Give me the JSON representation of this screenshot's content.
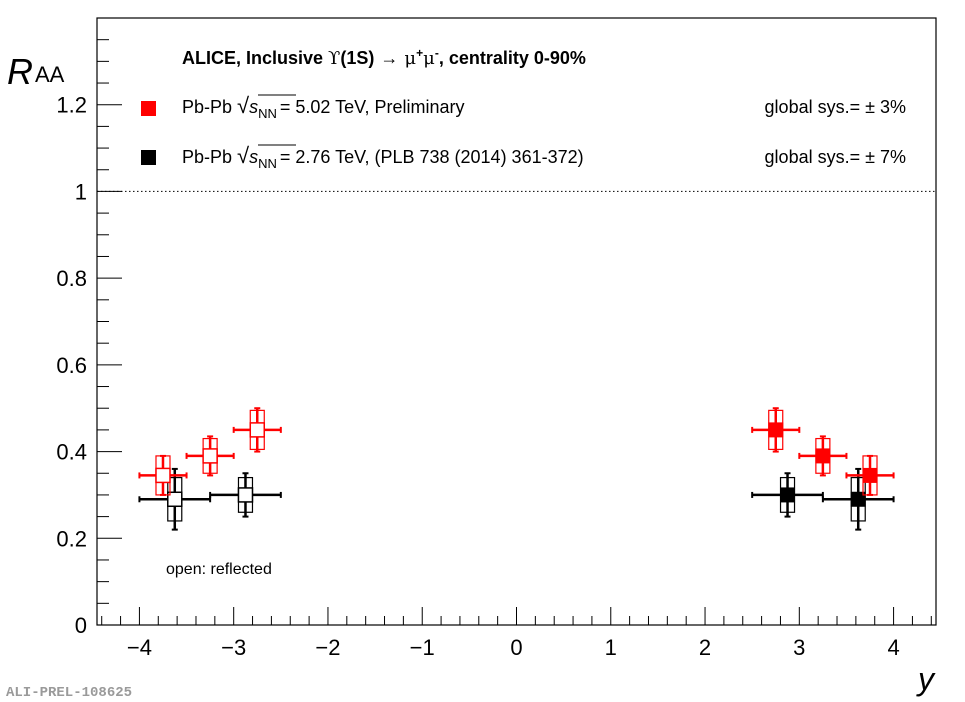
{
  "chart_data": {
    "type": "scatter",
    "title": "ALICE, Inclusive Υ(1S) → μ⁺μ⁻, centrality 0-90%",
    "title_parts": {
      "prefix": "ALICE, Inclusive ",
      "upsilon": "ϒ",
      "state": "(1S)",
      "arrow": "→",
      "mu1": "μ",
      "plus": "+",
      "mu2": "μ",
      "minus": "-",
      "suffix": ", centrality 0-90%"
    },
    "xlabel": "y",
    "ylabel": "R",
    "ylabel_sub": "AA",
    "xlim": [
      -4.45,
      4.45
    ],
    "ylim": [
      0,
      1.4
    ],
    "xticks": [
      -4,
      -3,
      -2,
      -1,
      0,
      1,
      2,
      3,
      4
    ],
    "xtick_labels": [
      "−4",
      "−3",
      "−2",
      "−1",
      "0",
      "1",
      "2",
      "3",
      "4"
    ],
    "yticks": [
      0,
      0.2,
      0.4,
      0.6,
      0.8,
      1,
      1.2
    ],
    "ytick_labels": [
      "0",
      "0.2",
      "0.4",
      "0.6",
      "0.8",
      "1",
      "1.2"
    ],
    "reference_line": 1.0,
    "annotation": "open: reflected",
    "watermark": "ALI-PREL-108625",
    "series": [
      {
        "name": "Pb-Pb 5.02 TeV, Preliminary",
        "color": "#ff0000",
        "points": [
          {
            "x": 2.75,
            "y": 0.45,
            "xerr": 0.25,
            "stat": 0.05,
            "sys": 0.045
          },
          {
            "x": 3.25,
            "y": 0.39,
            "xerr": 0.25,
            "stat": 0.045,
            "sys": 0.04
          },
          {
            "x": 3.75,
            "y": 0.345,
            "xerr": 0.25,
            "stat": 0.045,
            "sys": 0.045
          }
        ]
      },
      {
        "name": "Pb-Pb 2.76 TeV, (PLB 738 (2014) 361-372)",
        "color": "#000000",
        "points": [
          {
            "x": 2.875,
            "y": 0.3,
            "xerr": 0.375,
            "stat": 0.05,
            "sys": 0.04
          },
          {
            "x": 3.625,
            "y": 0.29,
            "xerr": 0.375,
            "stat": 0.07,
            "sys": 0.05
          }
        ]
      }
    ],
    "legend": [
      {
        "label_prefix": "Pb-Pb ",
        "sqrt_symbol": "√",
        "s_label": "s",
        "nn_label": "NN",
        "energy": "= 5.02 TeV, Preliminary",
        "global_sys": "global sys.= ± 3%",
        "color": "#ff0000"
      },
      {
        "label_prefix": "Pb-Pb ",
        "sqrt_symbol": "√",
        "s_label": "s",
        "nn_label": "NN",
        "energy": "= 2.76 TeV, (PLB 738 (2014) 361-372)",
        "global_sys": "global sys.= ± 7%",
        "color": "#000000"
      }
    ]
  }
}
